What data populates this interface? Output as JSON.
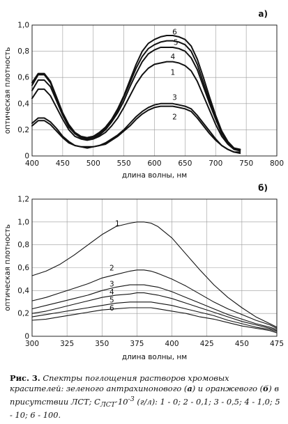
{
  "chart_data": [
    {
      "type": "line",
      "panel_label": "а)",
      "xlabel": "длина волны, нм",
      "ylabel": "оптическая плотность",
      "xlim": [
        400,
        800
      ],
      "ylim": [
        0,
        1.0
      ],
      "x_ticks": [
        "400",
        "450",
        "500",
        "550",
        "600",
        "650",
        "700",
        "750",
        "800"
      ],
      "y_ticks": [
        "0",
        "0,2",
        "0,4",
        "0,6",
        "0,8",
        "1,0"
      ],
      "grid": true,
      "series": [
        {
          "name": "6",
          "x": [
            400,
            410,
            420,
            430,
            440,
            450,
            460,
            470,
            480,
            490,
            500,
            510,
            520,
            530,
            540,
            550,
            560,
            570,
            580,
            590,
            600,
            610,
            620,
            630,
            640,
            650,
            660,
            670,
            680,
            690,
            700,
            710,
            720,
            730,
            740
          ],
          "y": [
            0.56,
            0.63,
            0.63,
            0.57,
            0.45,
            0.33,
            0.24,
            0.18,
            0.15,
            0.14,
            0.15,
            0.18,
            0.22,
            0.28,
            0.36,
            0.46,
            0.58,
            0.7,
            0.8,
            0.86,
            0.89,
            0.91,
            0.92,
            0.92,
            0.91,
            0.89,
            0.84,
            0.74,
            0.6,
            0.45,
            0.31,
            0.19,
            0.11,
            0.06,
            0.05
          ]
        },
        {
          "name": "5",
          "x": [
            400,
            410,
            420,
            430,
            440,
            450,
            460,
            470,
            480,
            490,
            500,
            510,
            520,
            530,
            540,
            550,
            560,
            570,
            580,
            590,
            600,
            610,
            620,
            630,
            640,
            650,
            660,
            670,
            680,
            690,
            700,
            710,
            720,
            730,
            740
          ],
          "y": [
            0.54,
            0.62,
            0.62,
            0.56,
            0.44,
            0.32,
            0.23,
            0.17,
            0.14,
            0.14,
            0.15,
            0.17,
            0.21,
            0.27,
            0.35,
            0.45,
            0.56,
            0.67,
            0.76,
            0.82,
            0.85,
            0.87,
            0.88,
            0.88,
            0.87,
            0.85,
            0.8,
            0.7,
            0.56,
            0.42,
            0.29,
            0.18,
            0.1,
            0.06,
            0.05
          ]
        },
        {
          "name": "4",
          "x": [
            400,
            410,
            420,
            430,
            440,
            450,
            460,
            470,
            480,
            490,
            500,
            510,
            520,
            530,
            540,
            550,
            560,
            570,
            580,
            590,
            600,
            610,
            620,
            630,
            640,
            650,
            660,
            670,
            680,
            690,
            700,
            710,
            720,
            730,
            740
          ],
          "y": [
            0.5,
            0.58,
            0.58,
            0.53,
            0.42,
            0.31,
            0.22,
            0.17,
            0.14,
            0.13,
            0.14,
            0.16,
            0.2,
            0.26,
            0.33,
            0.42,
            0.53,
            0.63,
            0.72,
            0.78,
            0.81,
            0.83,
            0.83,
            0.83,
            0.82,
            0.8,
            0.75,
            0.66,
            0.53,
            0.4,
            0.28,
            0.17,
            0.1,
            0.06,
            0.05
          ]
        },
        {
          "name": "1",
          "x": [
            400,
            410,
            420,
            430,
            440,
            450,
            460,
            470,
            480,
            490,
            500,
            510,
            520,
            530,
            540,
            550,
            560,
            570,
            580,
            590,
            600,
            610,
            620,
            630,
            640,
            650,
            660,
            670,
            680,
            690,
            700,
            710,
            720,
            730,
            740
          ],
          "y": [
            0.44,
            0.51,
            0.51,
            0.46,
            0.37,
            0.28,
            0.2,
            0.15,
            0.13,
            0.12,
            0.13,
            0.15,
            0.18,
            0.23,
            0.29,
            0.37,
            0.46,
            0.55,
            0.62,
            0.67,
            0.7,
            0.71,
            0.72,
            0.72,
            0.71,
            0.69,
            0.65,
            0.57,
            0.46,
            0.35,
            0.24,
            0.15,
            0.09,
            0.05,
            0.04
          ]
        },
        {
          "name": "3",
          "x": [
            400,
            410,
            420,
            430,
            440,
            450,
            460,
            470,
            480,
            490,
            500,
            510,
            520,
            530,
            540,
            550,
            560,
            570,
            580,
            590,
            600,
            610,
            620,
            630,
            640,
            650,
            660,
            670,
            680,
            690,
            700,
            710,
            720,
            730,
            740
          ],
          "y": [
            0.25,
            0.29,
            0.29,
            0.26,
            0.21,
            0.15,
            0.11,
            0.08,
            0.07,
            0.07,
            0.07,
            0.08,
            0.1,
            0.13,
            0.16,
            0.2,
            0.25,
            0.3,
            0.34,
            0.37,
            0.39,
            0.4,
            0.4,
            0.4,
            0.39,
            0.38,
            0.36,
            0.31,
            0.25,
            0.19,
            0.13,
            0.08,
            0.05,
            0.03,
            0.03
          ]
        },
        {
          "name": "2",
          "x": [
            400,
            410,
            420,
            430,
            440,
            450,
            460,
            470,
            480,
            490,
            500,
            510,
            520,
            530,
            540,
            550,
            560,
            570,
            580,
            590,
            600,
            610,
            620,
            630,
            640,
            650,
            660,
            670,
            680,
            690,
            700,
            710,
            720,
            730,
            740
          ],
          "y": [
            0.23,
            0.27,
            0.27,
            0.24,
            0.19,
            0.14,
            0.1,
            0.08,
            0.07,
            0.06,
            0.07,
            0.08,
            0.09,
            0.12,
            0.15,
            0.19,
            0.23,
            0.28,
            0.32,
            0.35,
            0.37,
            0.38,
            0.38,
            0.38,
            0.37,
            0.36,
            0.34,
            0.29,
            0.23,
            0.17,
            0.12,
            0.08,
            0.05,
            0.03,
            0.02
          ]
        }
      ],
      "curve_labels": [
        {
          "text": "6",
          "x": 633,
          "y": 0.95
        },
        {
          "text": "5",
          "x": 635,
          "y": 0.87
        },
        {
          "text": "4",
          "x": 630,
          "y": 0.76
        },
        {
          "text": "1",
          "x": 630,
          "y": 0.64
        },
        {
          "text": "3",
          "x": 633,
          "y": 0.45
        },
        {
          "text": "2",
          "x": 633,
          "y": 0.3
        }
      ]
    },
    {
      "type": "line",
      "panel_label": "б)",
      "xlabel": "длина волны, нм",
      "ylabel": "оптическая плотность",
      "xlim": [
        300,
        475
      ],
      "ylim": [
        0,
        1.2
      ],
      "x_ticks": [
        "300",
        "325",
        "350",
        "375",
        "400",
        "425",
        "450",
        "475"
      ],
      "y_ticks": [
        "0",
        "0,2",
        "0,4",
        "0,6",
        "0,8",
        "1,0",
        "1,2"
      ],
      "grid": true,
      "series": [
        {
          "name": "1",
          "x": [
            300,
            310,
            320,
            330,
            340,
            350,
            360,
            370,
            375,
            380,
            385,
            390,
            400,
            410,
            420,
            430,
            440,
            450,
            460,
            470,
            475
          ],
          "y": [
            0.53,
            0.57,
            0.63,
            0.71,
            0.8,
            0.89,
            0.96,
            0.99,
            1.0,
            1.0,
            0.99,
            0.96,
            0.86,
            0.72,
            0.58,
            0.45,
            0.34,
            0.25,
            0.17,
            0.11,
            0.08
          ]
        },
        {
          "name": "2",
          "x": [
            300,
            310,
            320,
            330,
            340,
            350,
            360,
            370,
            375,
            380,
            385,
            390,
            400,
            410,
            420,
            430,
            440,
            450,
            460,
            470,
            475
          ],
          "y": [
            0.31,
            0.34,
            0.38,
            0.42,
            0.46,
            0.51,
            0.54,
            0.57,
            0.58,
            0.58,
            0.57,
            0.55,
            0.5,
            0.44,
            0.37,
            0.3,
            0.24,
            0.19,
            0.14,
            0.1,
            0.07
          ]
        },
        {
          "name": "3",
          "x": [
            300,
            310,
            320,
            330,
            340,
            350,
            360,
            370,
            375,
            380,
            385,
            390,
            400,
            410,
            420,
            430,
            440,
            450,
            460,
            470,
            475
          ],
          "y": [
            0.24,
            0.27,
            0.3,
            0.33,
            0.36,
            0.4,
            0.43,
            0.45,
            0.45,
            0.45,
            0.44,
            0.43,
            0.39,
            0.34,
            0.29,
            0.24,
            0.19,
            0.15,
            0.11,
            0.08,
            0.06
          ]
        },
        {
          "name": "4",
          "x": [
            300,
            310,
            320,
            330,
            340,
            350,
            360,
            370,
            375,
            380,
            385,
            390,
            400,
            410,
            420,
            430,
            440,
            450,
            460,
            470,
            475
          ],
          "y": [
            0.2,
            0.22,
            0.25,
            0.28,
            0.31,
            0.34,
            0.36,
            0.37,
            0.38,
            0.38,
            0.37,
            0.36,
            0.33,
            0.29,
            0.25,
            0.21,
            0.17,
            0.13,
            0.1,
            0.07,
            0.05
          ]
        },
        {
          "name": "5",
          "x": [
            300,
            310,
            320,
            330,
            340,
            350,
            360,
            370,
            375,
            380,
            385,
            390,
            400,
            410,
            420,
            430,
            440,
            450,
            460,
            470,
            475
          ],
          "y": [
            0.17,
            0.19,
            0.21,
            0.23,
            0.25,
            0.27,
            0.29,
            0.3,
            0.3,
            0.3,
            0.3,
            0.29,
            0.27,
            0.24,
            0.21,
            0.18,
            0.14,
            0.11,
            0.08,
            0.06,
            0.04
          ]
        },
        {
          "name": "6",
          "x": [
            300,
            310,
            320,
            330,
            340,
            350,
            360,
            370,
            375,
            380,
            385,
            390,
            400,
            410,
            420,
            430,
            440,
            450,
            460,
            470,
            475
          ],
          "y": [
            0.14,
            0.15,
            0.17,
            0.19,
            0.21,
            0.23,
            0.24,
            0.25,
            0.25,
            0.25,
            0.25,
            0.24,
            0.22,
            0.2,
            0.17,
            0.15,
            0.12,
            0.09,
            0.07,
            0.05,
            0.03
          ]
        }
      ],
      "curve_labels": [
        {
          "text": "1",
          "x": 361,
          "y": 0.99
        },
        {
          "text": "2",
          "x": 357,
          "y": 0.6
        },
        {
          "text": "3",
          "x": 357,
          "y": 0.46
        },
        {
          "text": "4",
          "x": 357,
          "y": 0.39
        },
        {
          "text": "5",
          "x": 357,
          "y": 0.32
        },
        {
          "text": "6",
          "x": 357,
          "y": 0.25
        }
      ]
    }
  ],
  "caption": {
    "lead": "Рис. 3.",
    "part1": " Спектры поглощения растворов хромовых красителей: зеленого антрахинонового (",
    "a": "а",
    "part2": ") и оранжевого (",
    "b": "б",
    "part3": ") в присутствии ЛСТ; С",
    "sub": "ЛСТ",
    "part4": "·10",
    "sup": "-3",
    "part5": " (г/л): 1 - 0; 2 - 0,1; 3 - 0,5; 4 - 1,0; 5 - 10; 6 - 100."
  }
}
